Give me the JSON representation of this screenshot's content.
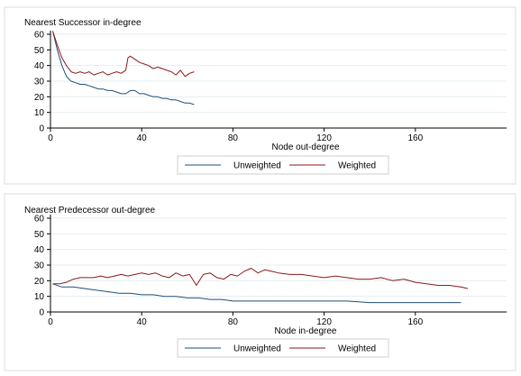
{
  "chart_data": [
    {
      "type": "line",
      "title": "Nearest Successor in-degree",
      "xlabel": "Node out-degree",
      "ylabel": "",
      "xlim": [
        0,
        200
      ],
      "ylim": [
        0,
        60
      ],
      "xticks": [
        "0",
        "40",
        "80",
        "120",
        "160"
      ],
      "yticks": [
        "0",
        "10",
        "20",
        "30",
        "40",
        "50",
        "60"
      ],
      "grid": true,
      "legend": "bottom-center",
      "series": [
        {
          "name": "Unweighted",
          "color": "#1f4e79",
          "x": [
            1,
            3,
            5,
            7,
            9,
            11,
            13,
            15,
            17,
            19,
            21,
            23,
            25,
            27,
            29,
            31,
            33,
            35,
            37,
            39,
            41,
            43,
            45,
            47,
            49,
            51,
            53,
            55,
            57,
            59,
            61,
            63
          ],
          "y": [
            62,
            50,
            40,
            33,
            30,
            29,
            28,
            28,
            27,
            26,
            25,
            25,
            24,
            24,
            23,
            22,
            22,
            24,
            24,
            22,
            22,
            21,
            20,
            20,
            19,
            19,
            18,
            18,
            17,
            16,
            16,
            15
          ]
        },
        {
          "name": "Weighted",
          "color": "#8b1a1a",
          "x": [
            1,
            3,
            5,
            7,
            9,
            11,
            13,
            15,
            17,
            19,
            21,
            23,
            25,
            27,
            29,
            31,
            33,
            34,
            35,
            37,
            39,
            41,
            43,
            45,
            47,
            49,
            51,
            53,
            55,
            57,
            59,
            61,
            63
          ],
          "y": [
            62,
            53,
            45,
            40,
            36,
            35,
            36,
            35,
            36,
            34,
            35,
            36,
            34,
            35,
            36,
            35,
            37,
            45,
            46,
            44,
            42,
            41,
            40,
            38,
            39,
            38,
            37,
            36,
            34,
            37,
            33,
            35,
            36
          ]
        }
      ]
    },
    {
      "type": "line",
      "title": "Nearest Predecessor out-degree",
      "xlabel": "Node in-degree",
      "ylabel": "",
      "xlim": [
        0,
        200
      ],
      "ylim": [
        0,
        60
      ],
      "xticks": [
        "0",
        "40",
        "80",
        "120",
        "160"
      ],
      "yticks": [
        "0",
        "10",
        "20",
        "30",
        "40",
        "50",
        "60"
      ],
      "grid": true,
      "legend": "bottom-center",
      "series": [
        {
          "name": "Unweighted",
          "color": "#1f4e79",
          "x": [
            1,
            5,
            10,
            15,
            20,
            25,
            30,
            35,
            40,
            45,
            50,
            55,
            60,
            65,
            70,
            75,
            80,
            85,
            90,
            95,
            100,
            110,
            120,
            130,
            140,
            150,
            160,
            170,
            180
          ],
          "y": [
            18,
            16,
            16,
            15,
            14,
            13,
            12,
            12,
            11,
            11,
            10,
            10,
            9,
            9,
            8,
            8,
            7,
            7,
            7,
            7,
            7,
            7,
            7,
            7,
            6,
            6,
            6,
            6,
            6
          ]
        },
        {
          "name": "Weighted",
          "color": "#8b1a1a",
          "x": [
            1,
            4,
            7,
            10,
            13,
            16,
            19,
            22,
            25,
            28,
            31,
            34,
            37,
            40,
            43,
            46,
            49,
            52,
            55,
            58,
            61,
            64,
            67,
            70,
            73,
            76,
            79,
            82,
            85,
            88,
            91,
            94,
            97,
            100,
            105,
            110,
            115,
            120,
            125,
            130,
            135,
            140,
            145,
            150,
            155,
            160,
            165,
            170,
            175,
            180,
            183
          ],
          "y": [
            18,
            18,
            19,
            21,
            22,
            22,
            22,
            23,
            22,
            23,
            24,
            23,
            24,
            25,
            24,
            25,
            23,
            22,
            25,
            23,
            24,
            17,
            24,
            25,
            22,
            21,
            24,
            23,
            26,
            28,
            25,
            27,
            26,
            25,
            24,
            24,
            23,
            22,
            23,
            22,
            21,
            21,
            22,
            20,
            21,
            19,
            18,
            17,
            17,
            16,
            15
          ]
        }
      ]
    }
  ]
}
